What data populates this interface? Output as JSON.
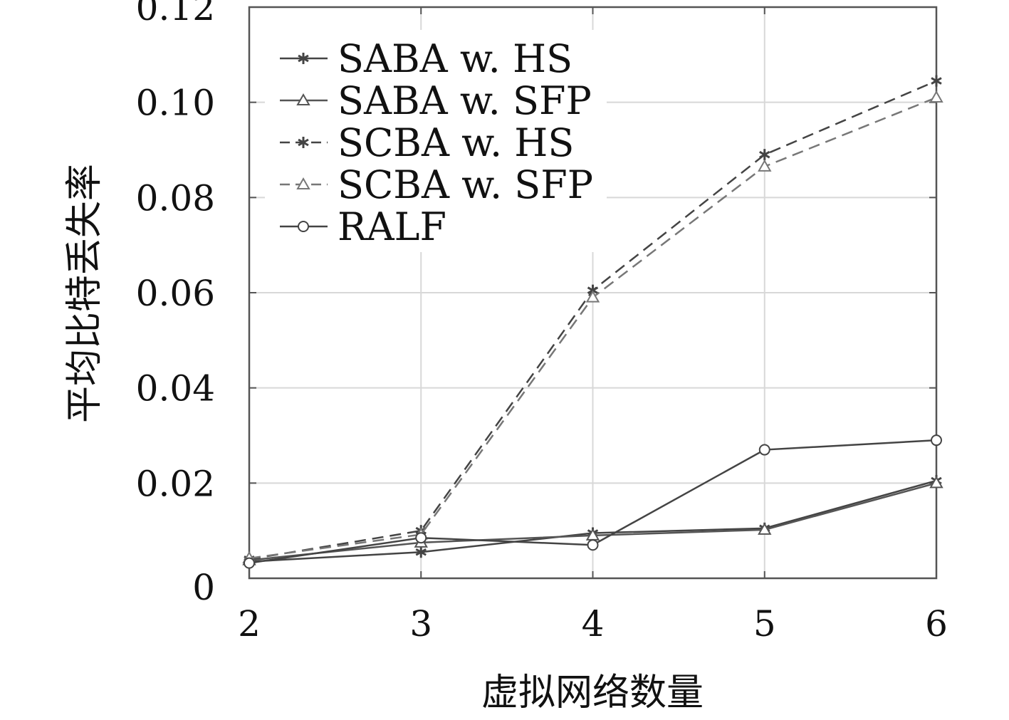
{
  "chart_data": {
    "type": "line",
    "title": "",
    "xlabel": "虚拟网络数量",
    "ylabel": "平均比特丢失率",
    "x": [
      2,
      3,
      4,
      5,
      6
    ],
    "xlim": [
      2,
      6
    ],
    "ylim": [
      0,
      0.12
    ],
    "x_ticks": [
      "2",
      "3",
      "4",
      "5",
      "6"
    ],
    "y_ticks": [
      "0",
      "0.02",
      "0.04",
      "0.06",
      "0.08",
      "0.10",
      "0.12"
    ],
    "y_tick_values": [
      0,
      0.02,
      0.04,
      0.06,
      0.08,
      0.1,
      0.12
    ],
    "grid": true,
    "legend_position": "top-left",
    "series": [
      {
        "name": "SABA w. HS",
        "values": [
          0.0035,
          0.0055,
          0.0095,
          0.0105,
          0.0205
        ],
        "line": "solid",
        "marker": "star",
        "color": "#444444"
      },
      {
        "name": "SABA w. SFP",
        "values": [
          0.0038,
          0.0075,
          0.009,
          0.0102,
          0.02
        ],
        "line": "solid",
        "marker": "triangle",
        "color": "#555555"
      },
      {
        "name": "SCBA w. HS",
        "values": [
          0.004,
          0.01,
          0.0605,
          0.089,
          0.1045
        ],
        "line": "dashed",
        "marker": "star",
        "color": "#444444"
      },
      {
        "name": "SCBA w. SFP",
        "values": [
          0.0042,
          0.0092,
          0.059,
          0.0865,
          0.101
        ],
        "line": "dashed",
        "marker": "triangle",
        "color": "#777777"
      },
      {
        "name": "RALF",
        "values": [
          0.0032,
          0.0085,
          0.007,
          0.027,
          0.029
        ],
        "line": "solid",
        "marker": "circle",
        "color": "#444444"
      }
    ]
  }
}
